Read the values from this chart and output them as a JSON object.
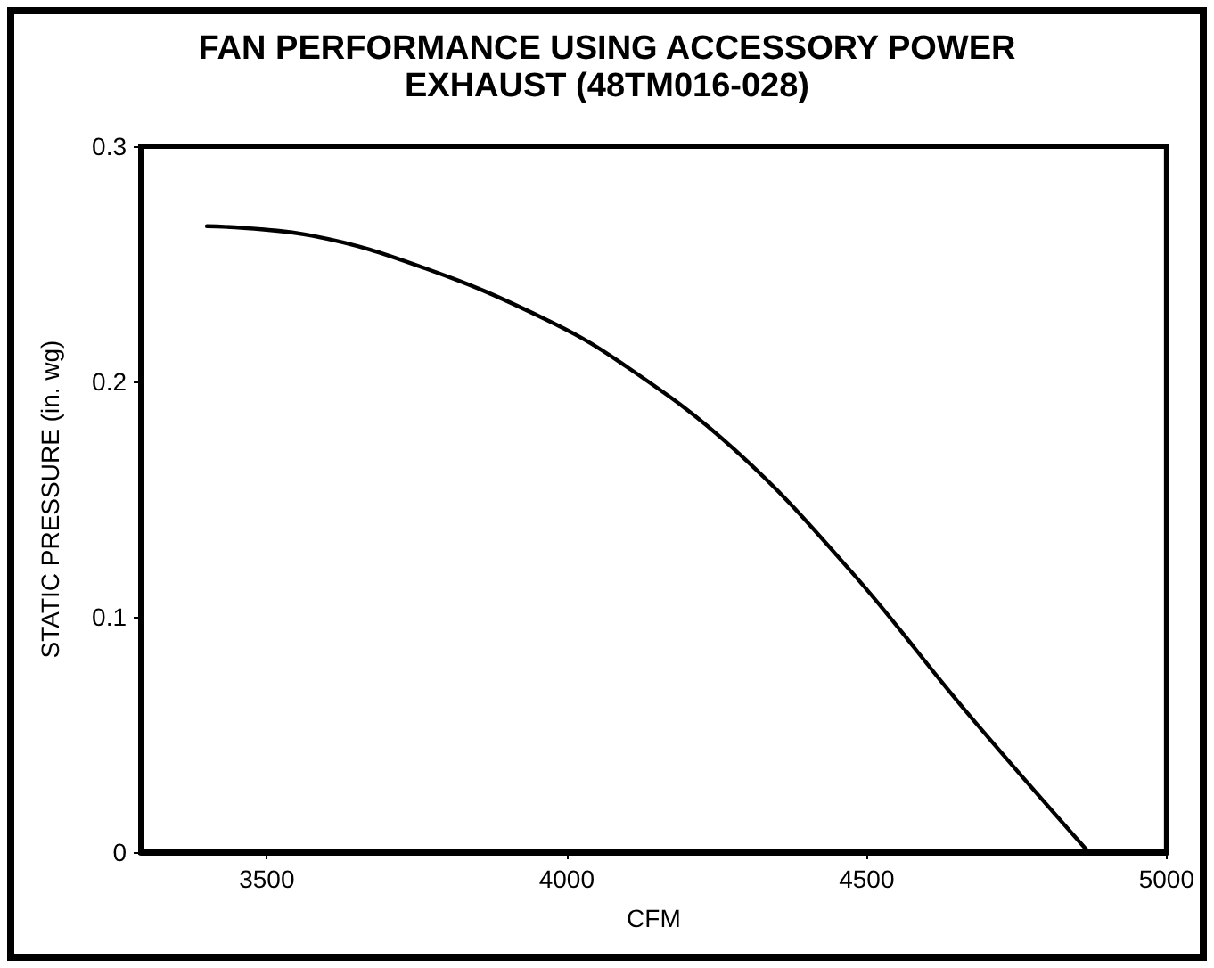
{
  "chart_data": {
    "type": "line",
    "title": "FAN PERFORMANCE USING ACCESSORY POWER\nEXHAUST (48TM016-028)",
    "xlabel": "CFM",
    "ylabel": "STATIC PRESSURE (in. wg)",
    "x": [
      3400,
      3575,
      3765,
      3960,
      4090,
      4280,
      4475,
      4665,
      4870
    ],
    "series": [
      {
        "color": "#000000",
        "values": [
          0.266,
          0.262,
          0.248,
          0.227,
          0.208,
          0.171,
          0.119,
          0.06,
          0
        ]
      }
    ],
    "xlim": [
      3290,
      5000
    ],
    "xticks": [
      3500,
      4000,
      4500,
      5000
    ],
    "ylim": [
      0,
      0.3
    ],
    "yticks": [
      0,
      0.1,
      0.2,
      0.3
    ],
    "grid": false,
    "marker": "none",
    "line_style": "solid"
  }
}
